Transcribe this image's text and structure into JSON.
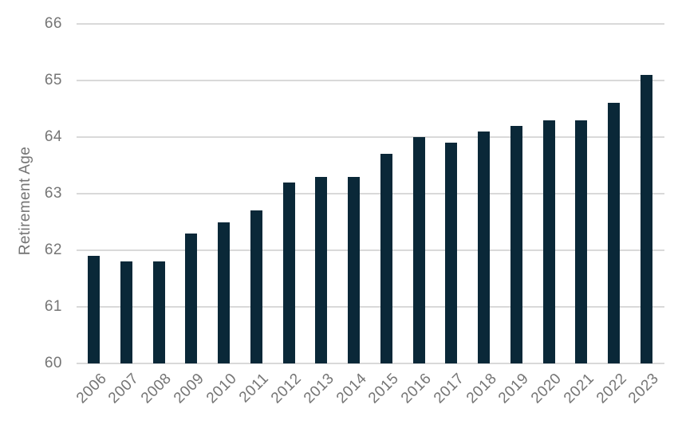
{
  "chart_data": {
    "type": "bar",
    "title": "",
    "xlabel": "",
    "ylabel": "Retirement Age",
    "categories": [
      "2006",
      "2007",
      "2008",
      "2009",
      "2010",
      "2011",
      "2012",
      "2013",
      "2014",
      "2015",
      "2016",
      "2017",
      "2018",
      "2019",
      "2020",
      "2021",
      "2022",
      "2023"
    ],
    "values": [
      61.9,
      61.8,
      61.8,
      62.3,
      62.5,
      62.7,
      63.2,
      63.3,
      63.3,
      63.7,
      64.0,
      63.9,
      64.1,
      64.2,
      64.3,
      64.3,
      64.6,
      65.1
    ],
    "ylim": [
      60,
      66
    ],
    "yticks": [
      60,
      61,
      62,
      63,
      64,
      65,
      66
    ],
    "grid": true,
    "legend": "none",
    "bar_color": "#0a2838",
    "gridline_color": "#d9d9d9",
    "label_color": "#757575"
  }
}
